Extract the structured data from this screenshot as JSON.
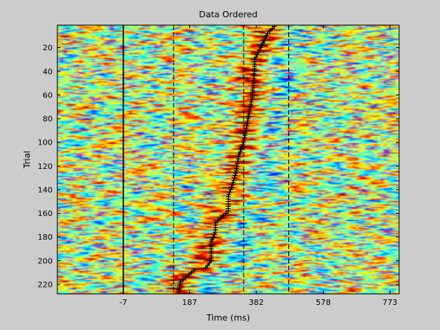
{
  "chart_data": {
    "type": "heatmap",
    "title": "Data Ordered",
    "xlabel": "Time (ms)",
    "ylabel": "Trial",
    "x_ticks": [
      -7,
      187,
      382,
      578,
      773
    ],
    "y_ticks": [
      20,
      40,
      60,
      80,
      100,
      120,
      140,
      160,
      180,
      200,
      220
    ],
    "xlim": [
      -200,
      800
    ],
    "ylim": [
      1,
      228
    ],
    "colormap": "jet",
    "trial_count": 228,
    "event_lines": [
      {
        "x": -7,
        "style": "solid"
      },
      {
        "x": 140,
        "style": "dashed"
      },
      {
        "x": 345,
        "style": "dashed"
      },
      {
        "x": 477,
        "style": "dashed"
      }
    ],
    "sort_curve": {
      "points": [
        [
          155,
          228
        ],
        [
          160,
          218
        ],
        [
          200,
          208
        ],
        [
          234,
          206
        ],
        [
          250,
          200
        ],
        [
          250,
          184
        ],
        [
          262,
          176
        ],
        [
          263,
          168
        ],
        [
          300,
          158
        ],
        [
          300,
          145
        ],
        [
          310,
          138
        ],
        [
          322,
          126
        ],
        [
          330,
          112
        ],
        [
          345,
          100
        ],
        [
          358,
          80
        ],
        [
          370,
          62
        ],
        [
          375,
          46
        ],
        [
          378,
          30
        ],
        [
          405,
          14
        ],
        [
          415,
          8
        ],
        [
          435,
          2
        ]
      ]
    },
    "colors": {
      "background": "#cccccc",
      "frame": "#000000"
    }
  }
}
